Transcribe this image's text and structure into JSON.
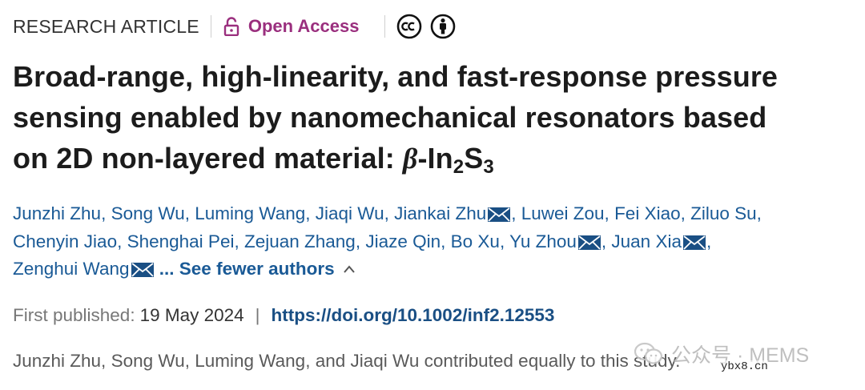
{
  "header": {
    "article_type": "RESEARCH ARTICLE",
    "open_access": "Open Access",
    "license_icons": [
      "creative-commons-icon",
      "attribution-icon"
    ]
  },
  "title": {
    "line1": "Broad-range, high-linearity, and fast-response pressure",
    "line2": "sensing enabled by nanomechanical resonators based",
    "line3_prefix": "on 2D non-layered material: ",
    "formula_greek": "β",
    "formula_dash": "-In",
    "formula_sub1": "2",
    "formula_s": "S",
    "formula_sub2": "3"
  },
  "authors": {
    "list": [
      {
        "name": "Junzhi Zhu",
        "corresponding": false
      },
      {
        "name": "Song Wu",
        "corresponding": false
      },
      {
        "name": "Luming Wang",
        "corresponding": false
      },
      {
        "name": "Jiaqi Wu",
        "corresponding": false
      },
      {
        "name": "Jiankai Zhu",
        "corresponding": true
      },
      {
        "name": "Luwei Zou",
        "corresponding": false
      },
      {
        "name": "Fei Xiao",
        "corresponding": false
      },
      {
        "name": "Ziluo Su",
        "corresponding": false
      },
      {
        "name": "Chenyin Jiao",
        "corresponding": false
      },
      {
        "name": "Shenghai Pei",
        "corresponding": false
      },
      {
        "name": "Zejuan Zhang",
        "corresponding": false
      },
      {
        "name": "Jiaze Qin",
        "corresponding": false
      },
      {
        "name": "Bo Xu",
        "corresponding": false
      },
      {
        "name": "Yu Zhou",
        "corresponding": true
      },
      {
        "name": "Juan Xia",
        "corresponding": true
      },
      {
        "name": "Zenghui Wang",
        "corresponding": true
      }
    ],
    "toggle_label": "... See fewer authors"
  },
  "publication": {
    "label": "First published:",
    "date": "19 May 2024",
    "separator": "|",
    "doi": "https://doi.org/10.1002/inf2.12553"
  },
  "note": "Junzhi Zhu, Song Wu, Luming Wang, and Jiaqi Wu contributed equally to this study.",
  "watermark": {
    "text": "公众号 · MEMS",
    "site": "ybx8.cn"
  },
  "colors": {
    "link": "#1a5a96",
    "open_access": "#9a2f7e",
    "doi": "#1a4f84"
  }
}
